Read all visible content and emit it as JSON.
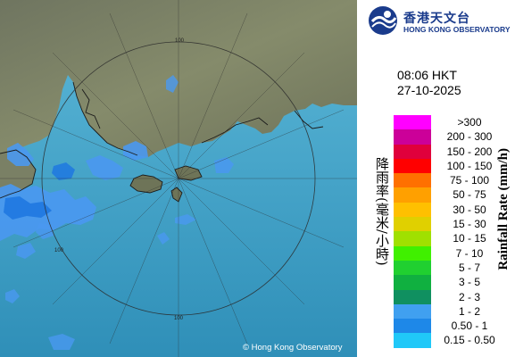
{
  "header": {
    "logo_cn": "香港天文台",
    "logo_en": "HONG KONG OBSERVATORY",
    "time": "08:06 HKT",
    "date": "27-10-2025"
  },
  "map": {
    "copyright": "© Hong Kong Observatory",
    "range_label": "100",
    "colors": {
      "land": "#7c8266",
      "sea": "#4aa8cc",
      "rain_light": "#4a98f0",
      "rain_mid": "#1f78e0"
    }
  },
  "legend": {
    "unit_cn": "降雨率(毫米/小時)",
    "unit_en": "Rainfall Rate (mm/h)",
    "items": [
      {
        "label": ">300",
        "color": "#ff00ff"
      },
      {
        "label": "200 - 300",
        "color": "#cc0099"
      },
      {
        "label": "150 - 200",
        "color": "#e0003c"
      },
      {
        "label": "100 - 150",
        "color": "#ff0000"
      },
      {
        "label": "75 - 100",
        "color": "#ff7000"
      },
      {
        "label": "50 - 75",
        "color": "#ffa000"
      },
      {
        "label": "30 - 50",
        "color": "#ffc000"
      },
      {
        "label": "15 - 30",
        "color": "#e0d000"
      },
      {
        "label": "10 - 15",
        "color": "#a0e000"
      },
      {
        "label": "7 - 10",
        "color": "#40f000"
      },
      {
        "label": "5 - 7",
        "color": "#20d030"
      },
      {
        "label": "3 - 5",
        "color": "#10b040"
      },
      {
        "label": "2 - 3",
        "color": "#109060"
      },
      {
        "label": "1 - 2",
        "color": "#40a0f0"
      },
      {
        "label": "0.50 - 1",
        "color": "#1e88e8"
      },
      {
        "label": "0.15 - 0.50",
        "color": "#20c8f8"
      }
    ]
  }
}
